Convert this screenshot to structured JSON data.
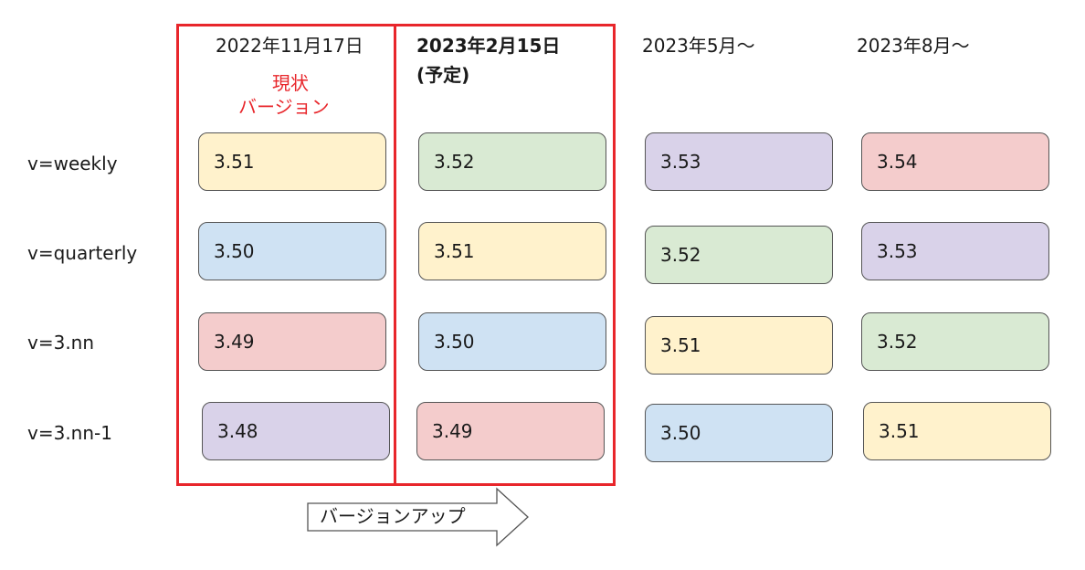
{
  "columns": [
    {
      "date": "2022年11月17日",
      "note": ""
    },
    {
      "date": "2023年2月15日",
      "note": "(予定)"
    },
    {
      "date": "2023年5月～",
      "note": ""
    },
    {
      "date": "2023年8月～",
      "note": ""
    }
  ],
  "current_label": {
    "line1": "現状",
    "line2": "バージョン"
  },
  "rows": [
    {
      "label": "v=weekly",
      "values": [
        "3.51",
        "3.52",
        "3.53",
        "3.54"
      ]
    },
    {
      "label": "v=quarterly",
      "values": [
        "3.50",
        "3.51",
        "3.52",
        "3.53"
      ]
    },
    {
      "label": "v=3.nn",
      "values": [
        "3.49",
        "3.50",
        "3.51",
        "3.52"
      ]
    },
    {
      "label": "v=3.nn-1",
      "values": [
        "3.48",
        "3.49",
        "3.50",
        "3.51"
      ]
    }
  ],
  "version_colors": {
    "3.48": "#d9d2e9",
    "3.49": "#f4cccc",
    "3.50": "#cfe2f3",
    "3.51": "#fff2cc",
    "3.52": "#d9ead3",
    "3.53": "#d9d2e9",
    "3.54": "#f4cccc"
  },
  "highlight_color": "#e8262b",
  "upgrade_arrow": {
    "label": "バージョンアップ",
    "icon": "right-arrow-icon"
  }
}
